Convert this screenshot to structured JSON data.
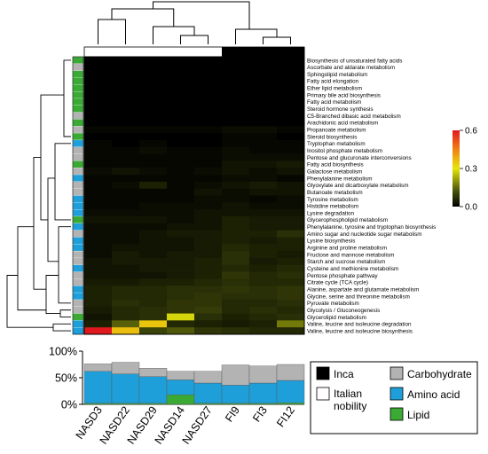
{
  "chart_data": {
    "type": "heatmap",
    "samples": [
      "NASD3",
      "NASD22",
      "NASD29",
      "NASD14",
      "NASD27",
      "FI9",
      "FI3",
      "FI12"
    ],
    "sample_groups": [
      "italian",
      "italian",
      "italian",
      "italian",
      "italian",
      "inca",
      "inca",
      "inca"
    ],
    "pathways": [
      {
        "name": "Biosynthesis of unsaturated fatty acids",
        "category": "lipid"
      },
      {
        "name": "Ascorbate and aldarate metabolism",
        "category": "carbohydrate"
      },
      {
        "name": "Sphingolipid metabolism",
        "category": "lipid"
      },
      {
        "name": "Fatty acid elongation",
        "category": "lipid"
      },
      {
        "name": "Ether lipid metabolism",
        "category": "lipid"
      },
      {
        "name": "Primary bile acid biosynthesis",
        "category": "lipid"
      },
      {
        "name": "Fatty acid metabolism",
        "category": "lipid"
      },
      {
        "name": "Steroid hormone synthesis",
        "category": "lipid"
      },
      {
        "name": "C5-Branched dibasic acid metabolism",
        "category": "carbohydrate"
      },
      {
        "name": "Arachidonic acid metabolism",
        "category": "lipid"
      },
      {
        "name": "Propanoate metabolism",
        "category": "carbohydrate"
      },
      {
        "name": "Steroid biosynthesis",
        "category": "lipid"
      },
      {
        "name": "Tryptophan metabolism",
        "category": "amino"
      },
      {
        "name": "Inositol phosphate metabolism",
        "category": "carbohydrate"
      },
      {
        "name": "Pentose and glucuronate interconversions",
        "category": "carbohydrate"
      },
      {
        "name": "Fatty acid biosynthesis",
        "category": "lipid"
      },
      {
        "name": "Galactose metabolism",
        "category": "carbohydrate"
      },
      {
        "name": "Phenylalanine metabolism",
        "category": "amino"
      },
      {
        "name": "Glyoxylate and dicarboxylate metabolism",
        "category": "carbohydrate"
      },
      {
        "name": "Butanoate metabolism",
        "category": "carbohydrate"
      },
      {
        "name": "Tyrosine metabolism",
        "category": "amino"
      },
      {
        "name": "Histidine metabolism",
        "category": "amino"
      },
      {
        "name": "Lysine degradation",
        "category": "amino"
      },
      {
        "name": "Glycerophospholipid metabolism",
        "category": "lipid"
      },
      {
        "name": "Phenylalanine, tyrosine and tryptophan biosynthesis",
        "category": "amino"
      },
      {
        "name": "Amino sugar and nucleotide sugar metabolism",
        "category": "carbohydrate"
      },
      {
        "name": "Lysine biosynthesis",
        "category": "amino"
      },
      {
        "name": "Arginine and proline metabolism",
        "category": "amino"
      },
      {
        "name": "Fructose and mannose metabolism",
        "category": "carbohydrate"
      },
      {
        "name": "Starch and sucrose metabolism",
        "category": "carbohydrate"
      },
      {
        "name": "Cysteine and methionine metabolism",
        "category": "amino"
      },
      {
        "name": "Pentose phosphate pathway",
        "category": "carbohydrate"
      },
      {
        "name": "Citrate cycle (TCA cycle)",
        "category": "carbohydrate"
      },
      {
        "name": "Alanine, aspartate and glutamate metabolism",
        "category": "amino"
      },
      {
        "name": "Glycine, serine and threonine metabolism",
        "category": "amino"
      },
      {
        "name": "Pyruvate metabolism",
        "category": "carbohydrate"
      },
      {
        "name": "Glycolysis / Gluconeogenesis",
        "category": "carbohydrate"
      },
      {
        "name": "Glycerolipid metabolism",
        "category": "lipid"
      },
      {
        "name": "Valine, leucine and isoleucine degradation",
        "category": "amino"
      },
      {
        "name": "Valine, leucine and isoleucine biosynthesis",
        "category": "amino"
      }
    ],
    "values": [
      [
        0.0,
        0.0,
        0.0,
        0.0,
        0.0,
        0.0,
        0.0,
        0.0
      ],
      [
        0.0,
        0.0,
        0.0,
        0.0,
        0.0,
        0.0,
        0.0,
        0.0
      ],
      [
        0.0,
        0.0,
        0.0,
        0.0,
        0.0,
        0.0,
        0.0,
        0.0
      ],
      [
        0.0,
        0.0,
        0.0,
        0.0,
        0.0,
        0.0,
        0.0,
        0.0
      ],
      [
        0.0,
        0.0,
        0.0,
        0.0,
        0.0,
        0.0,
        0.0,
        0.0
      ],
      [
        0.0,
        0.0,
        0.0,
        0.0,
        0.0,
        0.0,
        0.0,
        0.0
      ],
      [
        0.0,
        0.0,
        0.0,
        0.0,
        0.0,
        0.0,
        0.0,
        0.0
      ],
      [
        0.0,
        0.0,
        0.0,
        0.0,
        0.0,
        0.0,
        0.0,
        0.0
      ],
      [
        0.0,
        0.0,
        0.0,
        0.0,
        0.0,
        0.0,
        0.0,
        0.0
      ],
      [
        0.0,
        0.0,
        0.0,
        0.0,
        0.0,
        0.0,
        0.0,
        0.0
      ],
      [
        0.01,
        0.01,
        0.01,
        0.01,
        0.01,
        0.02,
        0.02,
        0.01
      ],
      [
        0.0,
        0.0,
        0.0,
        0.0,
        0.0,
        0.01,
        0.01,
        0.0
      ],
      [
        0.01,
        0.0,
        0.01,
        0.0,
        0.0,
        0.01,
        0.01,
        0.01
      ],
      [
        0.01,
        0.01,
        0.02,
        0.01,
        0.01,
        0.02,
        0.01,
        0.01
      ],
      [
        0.01,
        0.01,
        0.01,
        0.01,
        0.01,
        0.02,
        0.02,
        0.02
      ],
      [
        0.01,
        0.01,
        0.01,
        0.01,
        0.01,
        0.03,
        0.03,
        0.04
      ],
      [
        0.02,
        0.03,
        0.02,
        0.01,
        0.02,
        0.03,
        0.02,
        0.03
      ],
      [
        0.01,
        0.01,
        0.01,
        0.01,
        0.01,
        0.02,
        0.02,
        0.01
      ],
      [
        0.01,
        0.02,
        0.05,
        0.01,
        0.02,
        0.03,
        0.04,
        0.03
      ],
      [
        0.01,
        0.01,
        0.01,
        0.01,
        0.03,
        0.02,
        0.03,
        0.03
      ],
      [
        0.01,
        0.01,
        0.01,
        0.01,
        0.02,
        0.02,
        0.01,
        0.02
      ],
      [
        0.01,
        0.01,
        0.02,
        0.02,
        0.02,
        0.03,
        0.02,
        0.02
      ],
      [
        0.02,
        0.02,
        0.02,
        0.02,
        0.03,
        0.03,
        0.03,
        0.03
      ],
      [
        0.03,
        0.03,
        0.03,
        0.02,
        0.03,
        0.05,
        0.04,
        0.04
      ],
      [
        0.02,
        0.02,
        0.02,
        0.03,
        0.03,
        0.05,
        0.04,
        0.04
      ],
      [
        0.02,
        0.02,
        0.03,
        0.04,
        0.04,
        0.05,
        0.05,
        0.07
      ],
      [
        0.02,
        0.02,
        0.03,
        0.03,
        0.04,
        0.05,
        0.04,
        0.05
      ],
      [
        0.02,
        0.03,
        0.03,
        0.03,
        0.04,
        0.06,
        0.05,
        0.05
      ],
      [
        0.02,
        0.04,
        0.03,
        0.04,
        0.04,
        0.07,
        0.05,
        0.04
      ],
      [
        0.03,
        0.04,
        0.04,
        0.04,
        0.05,
        0.07,
        0.04,
        0.05
      ],
      [
        0.03,
        0.03,
        0.04,
        0.04,
        0.05,
        0.06,
        0.05,
        0.06
      ],
      [
        0.03,
        0.03,
        0.03,
        0.04,
        0.05,
        0.08,
        0.06,
        0.07
      ],
      [
        0.04,
        0.04,
        0.05,
        0.05,
        0.06,
        0.07,
        0.06,
        0.06
      ],
      [
        0.05,
        0.06,
        0.06,
        0.07,
        0.07,
        0.08,
        0.07,
        0.08
      ],
      [
        0.05,
        0.06,
        0.06,
        0.07,
        0.08,
        0.07,
        0.07,
        0.08
      ],
      [
        0.05,
        0.07,
        0.06,
        0.08,
        0.08,
        0.06,
        0.06,
        0.07
      ],
      [
        0.04,
        0.06,
        0.07,
        0.08,
        0.09,
        0.06,
        0.07,
        0.06
      ],
      [
        0.03,
        0.06,
        0.07,
        0.28,
        0.07,
        0.05,
        0.06,
        0.07
      ],
      [
        0.05,
        0.14,
        0.35,
        0.06,
        0.05,
        0.04,
        0.05,
        0.17
      ],
      [
        0.6,
        0.36,
        0.1,
        0.13,
        0.08,
        0.07,
        0.06,
        0.06
      ]
    ],
    "colorbar": {
      "min": 0.0,
      "max": 0.6,
      "ticks": [
        {
          "label": "0.6",
          "value": 0.6
        },
        {
          "label": "0.3",
          "value": 0.3
        },
        {
          "label": "0.0",
          "value": 0.0
        }
      ]
    },
    "bar_chart": {
      "type": "stacked-bar",
      "categories": [
        "NASD3",
        "NASD22",
        "NASD29",
        "NASD14",
        "NASD27",
        "FI9",
        "FI3",
        "FI12"
      ],
      "series": [
        {
          "name": "Lipid",
          "key": "lipid",
          "values": [
            2,
            2,
            2,
            18,
            2,
            2,
            2,
            3
          ]
        },
        {
          "name": "Amino acid",
          "key": "amino",
          "values": [
            60,
            55,
            50,
            28,
            38,
            34,
            38,
            42
          ]
        },
        {
          "name": "Carbohydrate",
          "key": "carbohydrate",
          "values": [
            14,
            22,
            16,
            16,
            22,
            38,
            32,
            30
          ]
        }
      ],
      "yticks": [
        "0%",
        "50%",
        "100%"
      ],
      "ylim": [
        0,
        100
      ]
    },
    "legend": {
      "groups": [
        {
          "label": "Inca",
          "key": "inca"
        },
        {
          "label": "Italian nobility",
          "key": "italian"
        }
      ],
      "categories": [
        {
          "label": "Carbohydrate",
          "key": "carbohydrate"
        },
        {
          "label": "Amino acid",
          "key": "amino"
        },
        {
          "label": "Lipid",
          "key": "lipid"
        }
      ]
    },
    "colors": {
      "carbohydrate": "#b3b3b3",
      "amino": "#1f9fd9",
      "lipid": "#3aaa35",
      "inca": "#000000",
      "italian": "#ffffff"
    }
  }
}
